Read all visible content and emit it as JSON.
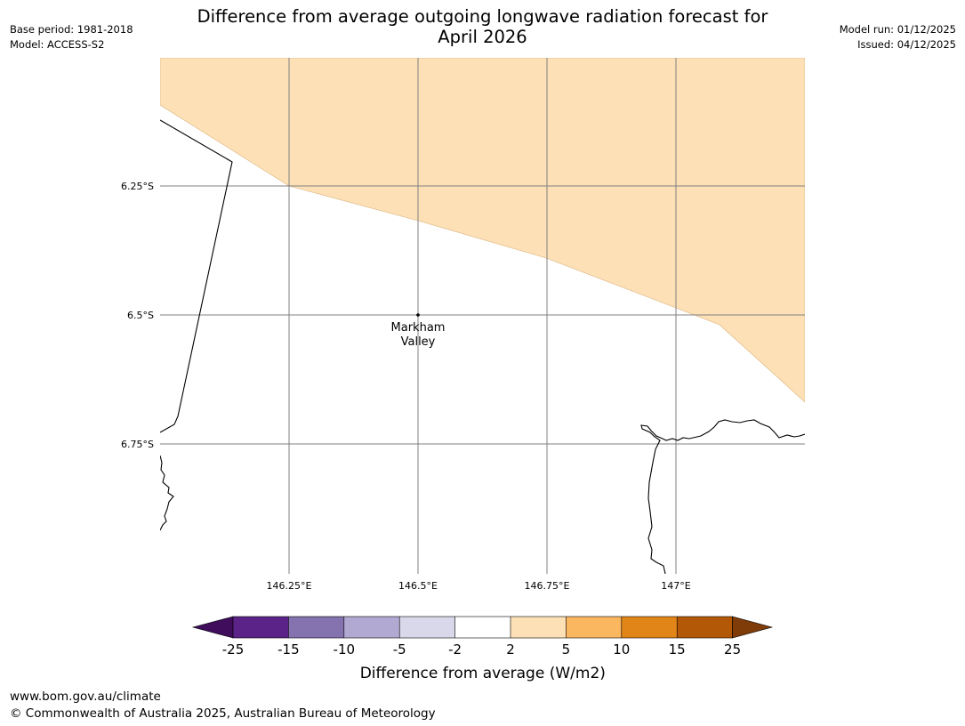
{
  "title": {
    "line1": "Difference from average outgoing longwave radiation forecast for",
    "line2": "April 2026"
  },
  "meta_left": {
    "base_period": "Base period: 1981-2018",
    "model": "Model: ACCESS-S2"
  },
  "meta_right": {
    "model_run": "Model run: 01/12/2025",
    "issued": "Issued: 04/12/2025"
  },
  "map": {
    "lat_labels": [
      "6.25°S",
      "6.5°S",
      "6.75°S"
    ],
    "lon_labels": [
      "146.25°E",
      "146.5°E",
      "146.75°E",
      "147°E"
    ],
    "place": {
      "line1": "Markham",
      "line2": "Valley"
    },
    "anomaly_fill_color": "#fde0b6",
    "anomaly_class": "2 to 5",
    "grid_color": "#808080"
  },
  "colorbar": {
    "tick_labels": [
      "-25",
      "-15",
      "-10",
      "-5",
      "-2",
      "2",
      "5",
      "10",
      "15",
      "25"
    ],
    "label": "Difference from average (W/m2)",
    "colors": [
      "#3f0d5c",
      "#5b2387",
      "#8473ae",
      "#b2a9d3",
      "#d9d8ea",
      "#ffffff",
      "#fde0b6",
      "#fbb660",
      "#e18519",
      "#b35806",
      "#7f3b08"
    ]
  },
  "footer": {
    "url": "www.bom.gov.au/climate",
    "copyright": "© Commonwealth of Australia 2025, Australian Bureau of Meteorology"
  }
}
